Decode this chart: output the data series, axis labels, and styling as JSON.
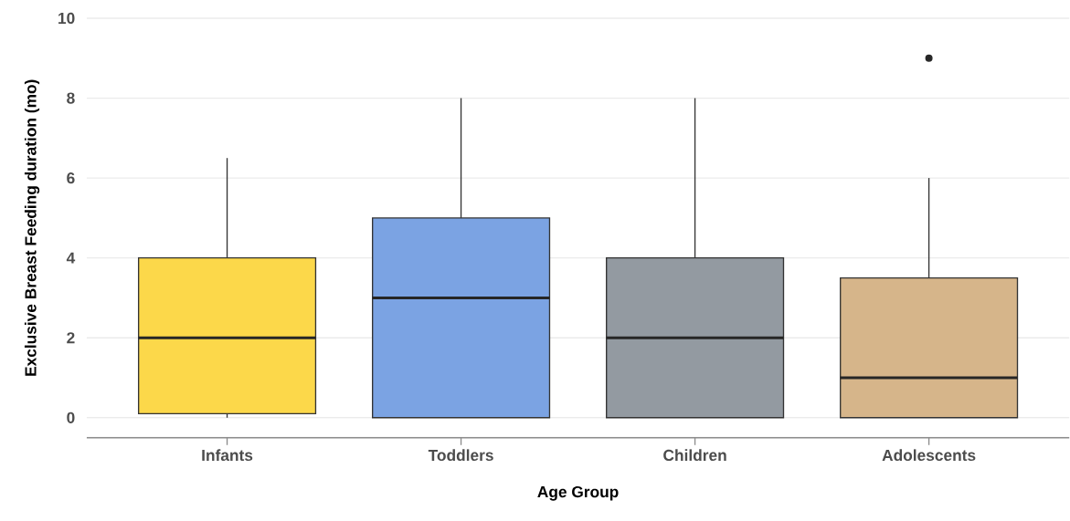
{
  "chart_data": {
    "type": "box",
    "xlabel": "Age Group",
    "ylabel": "Exclusive Breast Feeding duration (mo)",
    "categories": [
      "Infants",
      "Toddlers",
      "Children",
      "Adolescents"
    ],
    "colors": [
      "#fcd84a",
      "#7ba3e3",
      "#939aa1",
      "#d6b58a"
    ],
    "boxes": [
      {
        "low": 0,
        "q1": 0.1,
        "median": 2,
        "q3": 4,
        "high": 6.5
      },
      {
        "low": 0,
        "q1": 0,
        "median": 3,
        "q3": 5,
        "high": 8
      },
      {
        "low": 0,
        "q1": 0,
        "median": 2,
        "q3": 4,
        "high": 8
      },
      {
        "low": 0,
        "q1": 0,
        "median": 1,
        "q3": 3.5,
        "high": 6,
        "outliers": [
          9
        ]
      }
    ],
    "ylim": [
      -0.5,
      10
    ],
    "yticks": [
      0,
      2,
      4,
      6,
      8,
      10
    ],
    "grid": "y"
  }
}
